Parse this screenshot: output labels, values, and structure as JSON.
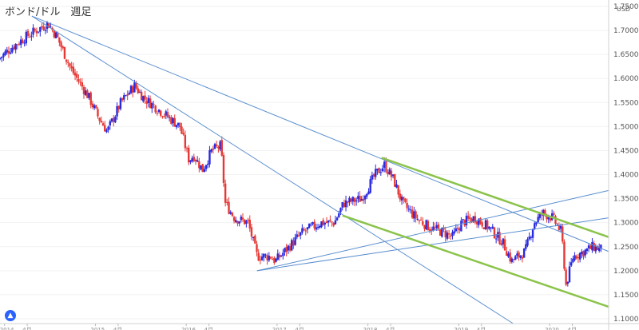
{
  "chart_data": {
    "type": "candlestick",
    "title": "ポンド/ドル　週足",
    "unit": "USD",
    "ylim": [
      1.09,
      1.75
    ],
    "y_ticks": [
      "1.75000",
      "1.70000",
      "1.65000",
      "1.60000",
      "1.55000",
      "1.50000",
      "1.45000",
      "1.40000",
      "1.35000",
      "1.30000",
      "1.25000",
      "1.20000",
      "1.15000",
      "1.10000"
    ],
    "x_ticks": [
      {
        "label": "2014",
        "x": 2014.0
      },
      {
        "label": "4月",
        "x": 2014.25
      },
      {
        "label": "2015",
        "x": 2015.0
      },
      {
        "label": "4月",
        "x": 2015.25
      },
      {
        "label": "2016",
        "x": 2016.0
      },
      {
        "label": "4月",
        "x": 2016.25
      },
      {
        "label": "2017",
        "x": 2017.0
      },
      {
        "label": "4月",
        "x": 2017.25
      },
      {
        "label": "2018",
        "x": 2018.0
      },
      {
        "label": "4月",
        "x": 2018.25
      },
      {
        "label": "2019",
        "x": 2019.0
      },
      {
        "label": "4月",
        "x": 2019.25
      },
      {
        "label": "2020",
        "x": 2020.0
      },
      {
        "label": "4月",
        "x": 2020.25
      }
    ],
    "x_range": [
      2013.95,
      2020.65
    ],
    "up_color": "#2929e0",
    "down_color": "#e53935",
    "trendline_color": "#5b8fd0",
    "channel_color": "#8bc34a",
    "price_path": [
      [
        2013.95,
        1.64
      ],
      [
        2014.1,
        1.665
      ],
      [
        2014.28,
        1.69
      ],
      [
        2014.5,
        1.715
      ],
      [
        2014.6,
        1.685
      ],
      [
        2014.75,
        1.62
      ],
      [
        2014.95,
        1.56
      ],
      [
        2015.05,
        1.52
      ],
      [
        2015.15,
        1.49
      ],
      [
        2015.3,
        1.55
      ],
      [
        2015.45,
        1.585
      ],
      [
        2015.55,
        1.56
      ],
      [
        2015.75,
        1.53
      ],
      [
        2015.95,
        1.5
      ],
      [
        2016.05,
        1.43
      ],
      [
        2016.1,
        1.44
      ],
      [
        2016.2,
        1.41
      ],
      [
        2016.3,
        1.45
      ],
      [
        2016.4,
        1.46
      ],
      [
        2016.45,
        1.34
      ],
      [
        2016.55,
        1.31
      ],
      [
        2016.7,
        1.3
      ],
      [
        2016.8,
        1.23
      ],
      [
        2016.95,
        1.23
      ],
      [
        2017.0,
        1.22
      ],
      [
        2017.15,
        1.25
      ],
      [
        2017.3,
        1.28
      ],
      [
        2017.5,
        1.3
      ],
      [
        2017.65,
        1.3
      ],
      [
        2017.75,
        1.34
      ],
      [
        2017.95,
        1.35
      ],
      [
        2018.1,
        1.4
      ],
      [
        2018.2,
        1.42
      ],
      [
        2018.3,
        1.39
      ],
      [
        2018.4,
        1.34
      ],
      [
        2018.55,
        1.31
      ],
      [
        2018.7,
        1.29
      ],
      [
        2018.85,
        1.28
      ],
      [
        2018.95,
        1.27
      ],
      [
        2019.05,
        1.3
      ],
      [
        2019.2,
        1.31
      ],
      [
        2019.35,
        1.29
      ],
      [
        2019.5,
        1.26
      ],
      [
        2019.6,
        1.22
      ],
      [
        2019.75,
        1.24
      ],
      [
        2019.85,
        1.3
      ],
      [
        2019.95,
        1.32
      ],
      [
        2020.05,
        1.31
      ],
      [
        2020.15,
        1.28
      ],
      [
        2020.2,
        1.17
      ],
      [
        2020.28,
        1.23
      ],
      [
        2020.4,
        1.24
      ],
      [
        2020.5,
        1.25
      ],
      [
        2020.58,
        1.245
      ]
    ],
    "trendlines": [
      {
        "from": [
          2014.3,
          1.73
        ],
        "to": [
          2020.65,
          1.24
        ]
      },
      {
        "from": [
          2014.3,
          1.73
        ],
        "to": [
          2019.6,
          1.09
        ]
      },
      {
        "from": [
          2016.78,
          1.2
        ],
        "to": [
          2020.65,
          1.367
        ]
      },
      {
        "from": [
          2016.78,
          1.2
        ],
        "to": [
          2020.65,
          1.31
        ]
      }
    ],
    "channel_lines": [
      {
        "from": [
          2018.15,
          1.435
        ],
        "to": [
          2020.65,
          1.27
        ]
      },
      {
        "from": [
          2017.72,
          1.315
        ],
        "to": [
          2020.65,
          1.125
        ]
      }
    ]
  }
}
